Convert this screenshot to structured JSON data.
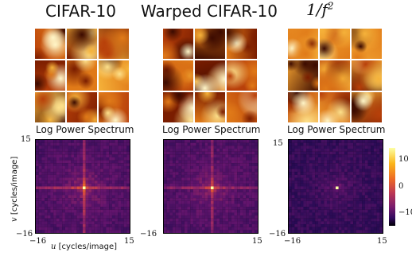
{
  "columns": [
    {
      "title": "CIFAR-10",
      "subtitle": "Log Power Spectrum"
    },
    {
      "title": "Warped CIFAR-10",
      "subtitle": "Log Power Spectrum"
    },
    {
      "title": "1/f",
      "title_sup": "2",
      "subtitle": "Log Power Spectrum"
    }
  ],
  "axes": {
    "x_min": "−16",
    "x_max": "15",
    "y_min": "−16",
    "y_max": "15",
    "x_var": "u",
    "x_unit": "[cycles/image]",
    "y_var": "v",
    "y_unit": "[cycles/image]"
  },
  "colorbar": {
    "ticks": [
      "10",
      "0",
      "−10"
    ]
  },
  "colors": {
    "dark": "#1a0a33",
    "mid": "#b03a7a",
    "bright": "#fbe39a",
    "ember_dark": "#4a1200",
    "ember_bright": "#fff2b0"
  }
}
